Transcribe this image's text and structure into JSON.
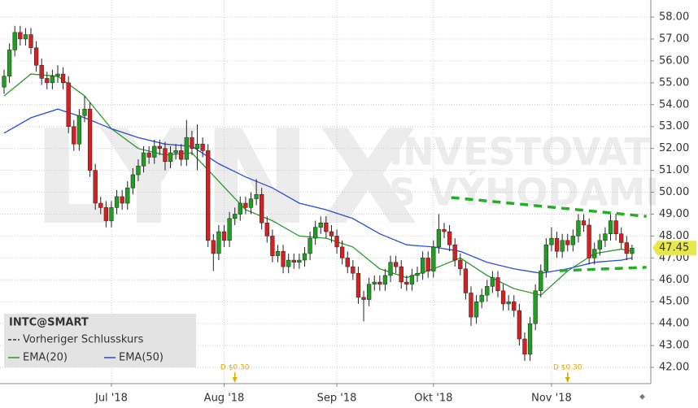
{
  "chart_data": {
    "type": "candlestick",
    "title": "INTC@SMART",
    "previous_close_label": "Vorheriger Schlusskurs",
    "watermark": {
      "logo": "LYNX",
      "line1": "INVESTOVAT",
      "line2": "S VÝHODAMI"
    },
    "up_color": "#1f9e1f",
    "down_color": "#d42020",
    "grid": true,
    "xlim": [
      -0.76,
      120.5
    ],
    "ylim": [
      41.26,
      58.78
    ],
    "xticks": [
      {
        "value": 20,
        "label": "Jul '18"
      },
      {
        "value": 41,
        "label": "Aug '18"
      },
      {
        "value": 62,
        "label": "Sep '18"
      },
      {
        "value": 80,
        "label": "Okt '18"
      },
      {
        "value": 102,
        "label": "Nov '18"
      }
    ],
    "yticks": [
      {
        "value": 42,
        "label": "42.00"
      },
      {
        "value": 43,
        "label": "43.00"
      },
      {
        "value": 44,
        "label": "44.00"
      },
      {
        "value": 45,
        "label": "45.00"
      },
      {
        "value": 46,
        "label": "46.00"
      },
      {
        "value": 47,
        "label": "47.00"
      },
      {
        "value": 48,
        "label": "48.00"
      },
      {
        "value": 49,
        "label": "49.00"
      },
      {
        "value": 50,
        "label": "50.00"
      },
      {
        "value": 51,
        "label": "51.00"
      },
      {
        "value": 52,
        "label": "52.00"
      },
      {
        "value": 53,
        "label": "53.00"
      },
      {
        "value": 54,
        "label": "54.00"
      },
      {
        "value": 55,
        "label": "55.00"
      },
      {
        "value": 56,
        "label": "56.00"
      },
      {
        "value": 57,
        "label": "57.00"
      },
      {
        "value": 58,
        "label": "58.00"
      }
    ],
    "open": [
      54.8,
      55.3,
      56.5,
      57.3,
      57.0,
      57.2,
      56.6,
      55.8,
      55.2,
      55.0,
      55.3,
      55.4,
      55.0,
      53.0,
      52.2,
      53.5,
      53.8,
      51.0,
      49.5,
      49.3,
      48.7,
      49.3,
      49.8,
      49.5,
      50.2,
      50.8,
      51.2,
      51.8,
      51.6,
      52.1,
      52.0,
      51.4,
      51.8,
      51.9,
      51.5,
      52.5,
      52.0,
      52.2,
      51.9,
      47.8,
      47.2,
      48.2,
      47.8,
      48.8,
      49.0,
      49.5,
      49.3,
      49.7,
      49.9,
      48.6,
      48.0,
      47.1,
      47.3,
      46.6,
      46.9,
      46.8,
      46.9,
      47.2,
      47.9,
      48.4,
      48.6,
      48.2,
      48.0,
      47.5,
      47.0,
      46.6,
      46.3,
      45.2,
      45.1,
      45.8,
      45.9,
      45.8,
      46.2,
      46.8,
      46.6,
      45.9,
      45.8,
      46.2,
      46.3,
      47.0,
      46.4,
      47.5,
      48.3,
      48.2,
      47.6,
      46.9,
      46.5,
      45.4,
      44.3,
      45.0,
      45.3,
      45.7,
      46.1,
      45.5,
      44.9,
      45.0,
      44.6,
      43.3,
      42.6,
      44.0,
      45.5,
      46.4,
      47.6,
      47.9,
      47.3,
      47.8,
      47.6,
      48.0,
      48.7,
      48.5,
      47.0,
      47.4,
      47.8,
      48.1,
      48.7,
      48.1,
      47.7,
      47.2
    ],
    "high": [
      55.6,
      56.8,
      57.6,
      57.6,
      57.5,
      57.5,
      56.9,
      56.1,
      55.5,
      55.6,
      55.8,
      55.7,
      55.3,
      53.3,
      53.8,
      54.4,
      54.1,
      51.3,
      49.8,
      49.6,
      49.6,
      50.1,
      50.1,
      50.5,
      51.1,
      51.5,
      52.1,
      52.1,
      52.4,
      52.4,
      52.3,
      52.1,
      52.2,
      52.2,
      53.3,
      52.8,
      53.1,
      52.5,
      52.2,
      48.1,
      48.5,
      48.5,
      49.1,
      49.3,
      49.8,
      49.8,
      50.0,
      50.6,
      50.2,
      48.9,
      48.3,
      47.6,
      47.6,
      47.2,
      47.2,
      47.2,
      47.5,
      48.2,
      48.7,
      48.9,
      48.9,
      48.5,
      48.3,
      47.8,
      47.3,
      46.9,
      46.6,
      45.5,
      46.1,
      46.2,
      46.2,
      46.5,
      47.1,
      47.1,
      46.9,
      46.2,
      46.5,
      46.6,
      47.3,
      47.3,
      47.8,
      49.0,
      48.6,
      48.5,
      47.9,
      47.2,
      46.8,
      45.7,
      45.3,
      45.6,
      46.0,
      46.4,
      46.4,
      45.8,
      45.3,
      45.3,
      44.9,
      43.6,
      44.3,
      45.8,
      46.7,
      47.9,
      48.4,
      48.2,
      48.1,
      48.1,
      48.3,
      49.0,
      49.0,
      48.8,
      47.7,
      48.1,
      48.4,
      49.0,
      49.0,
      48.4,
      48.0,
      47.6
    ],
    "low": [
      54.5,
      55.0,
      56.2,
      56.7,
      56.7,
      56.3,
      55.5,
      54.9,
      54.7,
      54.7,
      55.0,
      54.7,
      52.7,
      51.9,
      51.9,
      53.2,
      50.7,
      49.2,
      49.0,
      48.4,
      48.4,
      49.0,
      49.2,
      49.2,
      49.9,
      50.5,
      50.9,
      51.3,
      51.3,
      51.7,
      51.0,
      51.1,
      51.5,
      51.2,
      51.2,
      51.7,
      51.0,
      51.6,
      47.5,
      46.4,
      46.9,
      47.5,
      47.5,
      48.5,
      48.7,
      49.0,
      49.0,
      49.4,
      48.3,
      47.7,
      46.8,
      46.8,
      46.3,
      46.3,
      46.5,
      46.5,
      46.6,
      46.9,
      47.6,
      48.1,
      47.9,
      47.7,
      47.2,
      46.7,
      46.3,
      46.0,
      44.9,
      44.1,
      44.8,
      45.5,
      45.5,
      45.5,
      45.9,
      46.3,
      45.6,
      45.5,
      45.5,
      45.9,
      46.0,
      46.1,
      46.1,
      47.2,
      47.9,
      47.3,
      46.6,
      46.2,
      45.1,
      43.9,
      44.0,
      44.7,
      45.0,
      45.4,
      45.2,
      44.6,
      44.6,
      44.3,
      43.0,
      42.3,
      42.3,
      43.7,
      45.2,
      46.1,
      47.3,
      47.0,
      47.0,
      47.3,
      47.3,
      47.7,
      48.2,
      46.7,
      46.7,
      47.1,
      47.5,
      47.8,
      47.8,
      47.4,
      46.9,
      46.9
    ],
    "close": [
      55.3,
      56.5,
      57.3,
      57.0,
      57.2,
      56.6,
      55.8,
      55.2,
      55.0,
      55.3,
      55.4,
      55.0,
      53.0,
      52.2,
      53.5,
      53.8,
      51.0,
      49.5,
      49.3,
      48.7,
      49.3,
      49.8,
      49.5,
      50.2,
      50.8,
      51.2,
      51.8,
      51.6,
      52.1,
      52.0,
      51.4,
      51.8,
      51.9,
      51.5,
      52.5,
      52.0,
      52.2,
      51.9,
      47.8,
      47.2,
      48.2,
      47.8,
      48.8,
      49.0,
      49.5,
      49.3,
      49.7,
      49.9,
      48.6,
      48.0,
      47.1,
      47.3,
      46.6,
      46.9,
      46.8,
      46.9,
      47.2,
      47.9,
      48.4,
      48.6,
      48.2,
      48.0,
      47.5,
      47.0,
      46.6,
      46.3,
      45.2,
      45.1,
      45.8,
      45.9,
      45.8,
      46.2,
      46.8,
      46.6,
      45.9,
      45.8,
      46.2,
      46.3,
      47.0,
      46.4,
      47.5,
      48.3,
      48.2,
      47.6,
      46.9,
      46.5,
      45.4,
      44.3,
      45.0,
      45.3,
      45.7,
      46.1,
      45.5,
      44.9,
      45.0,
      44.6,
      43.3,
      42.6,
      44.0,
      45.5,
      46.4,
      47.6,
      47.9,
      47.3,
      47.8,
      47.6,
      48.0,
      48.7,
      48.5,
      47.0,
      47.4,
      47.8,
      48.1,
      48.7,
      48.1,
      47.7,
      47.2,
      47.45
    ],
    "series": [
      {
        "name": "EMA(20)",
        "color": "#2a9a2a",
        "x": [
          0,
          5,
          10,
          15,
          20,
          25,
          30,
          35,
          40,
          45,
          50,
          55,
          60,
          65,
          70,
          75,
          80,
          85,
          90,
          95,
          100,
          105,
          110,
          115,
          117
        ],
        "values": [
          54.4,
          55.4,
          55.3,
          54.4,
          52.9,
          52.0,
          51.7,
          51.8,
          50.5,
          49.2,
          48.7,
          48.0,
          47.9,
          47.5,
          46.5,
          46.1,
          46.5,
          47.0,
          46.2,
          45.6,
          45.3,
          46.4,
          47.2,
          47.4,
          47.3
        ]
      },
      {
        "name": "EMA(50)",
        "color": "#2a4fd6",
        "x": [
          0,
          5,
          10,
          15,
          20,
          25,
          30,
          35,
          40,
          45,
          50,
          55,
          60,
          65,
          70,
          75,
          80,
          85,
          90,
          95,
          100,
          105,
          110,
          115,
          117
        ],
        "values": [
          52.7,
          53.4,
          53.8,
          53.4,
          52.9,
          52.5,
          52.2,
          52.1,
          51.3,
          50.7,
          50.2,
          49.5,
          49.2,
          48.8,
          48.1,
          47.6,
          47.5,
          47.3,
          46.8,
          46.5,
          46.3,
          46.5,
          46.8,
          46.9,
          47.0
        ]
      }
    ],
    "trendlines": [
      {
        "color": "#22b022",
        "x": [
          83.3,
          119.7
        ],
        "y": [
          49.76,
          48.9
        ]
      },
      {
        "color": "#22b022",
        "x": [
          103.5,
          119.7
        ],
        "y": [
          46.42,
          46.57
        ]
      }
    ],
    "dividends": [
      {
        "x": 43,
        "label": "D $0.30"
      },
      {
        "x": 105,
        "label": "D $0.30"
      }
    ]
  }
}
